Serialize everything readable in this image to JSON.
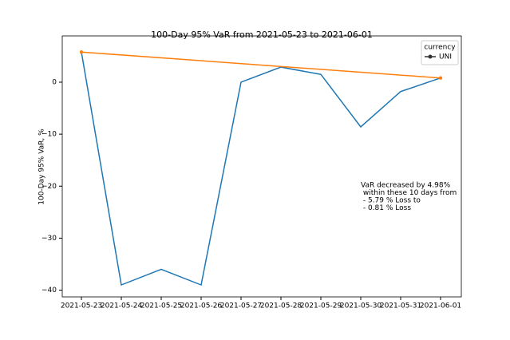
{
  "chart_data": {
    "type": "line",
    "title": "100-Day 95% VaR from 2021-05-23 to 2021-06-01",
    "y_label": "100-Day 95% VaR, %",
    "categories": [
      "2021-05-23",
      "2021-05-24",
      "2021-05-25",
      "2021-05-26",
      "2021-05-27",
      "2021-05-28",
      "2021-05-29",
      "2021-05-30",
      "2021-05-31",
      "2021-06-01"
    ],
    "series": [
      {
        "name": "UNI",
        "color": "#1f77b4",
        "values": [
          5.79,
          -39.0,
          -36.0,
          -39.0,
          0.0,
          2.9,
          1.5,
          -8.6,
          -1.8,
          0.81
        ]
      }
    ],
    "trend": {
      "color": "#ff7f0e",
      "values": [
        5.79,
        0.81
      ]
    },
    "legend_title": "currency",
    "legend": "upper right",
    "annotation": [
      "VaR decreased by 4.98%",
      " within these 10 days from",
      " - 5.79 % Loss to",
      " - 0.81 % Loss"
    ],
    "ylim": [
      -41.3,
      8.9
    ],
    "yticks": [
      {
        "value": -40,
        "label": "−40"
      },
      {
        "value": -30,
        "label": "−30"
      },
      {
        "value": -20,
        "label": "−20"
      },
      {
        "value": -10,
        "label": "−10"
      },
      0
    ],
    "grid": false
  }
}
